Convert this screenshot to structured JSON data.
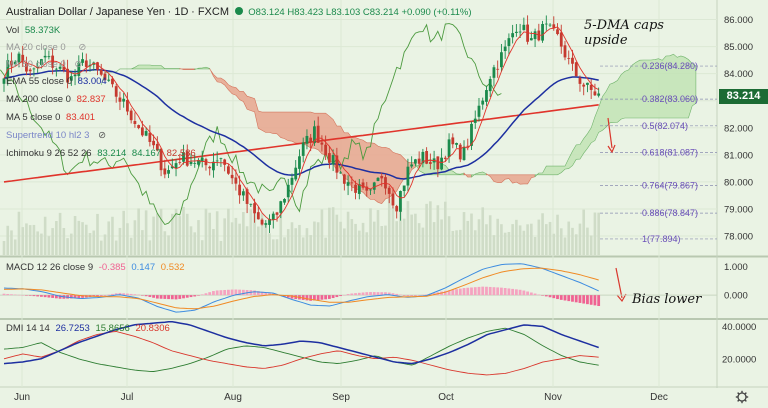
{
  "header": {
    "symbol": "Australian Dollar / Japanese Yen",
    "interval": "1D",
    "exchange": "FXCM",
    "open": "O83.124",
    "high": "H83.423",
    "low": "L83.103",
    "close": "C83.214",
    "change": "+0.090 (+0.11%)"
  },
  "indicators": {
    "volume": {
      "label": "Vol",
      "value": "58.373K"
    },
    "ma20": {
      "label": "MA 20 close 0",
      "value": ""
    },
    "ma50": {
      "label": "MA 50 close 0",
      "value": ""
    },
    "ema55": {
      "label": "EMA 55 close 0",
      "value": "83.004"
    },
    "ma200": {
      "label": "MA 200 close 0",
      "value": "82.837"
    },
    "ma5": {
      "label": "MA 5 close 0",
      "value": "83.401"
    },
    "supertrend": {
      "label": "Supertrend 10 hl2 3",
      "value": ""
    },
    "ichimoku": {
      "label": "Ichimoku 9 26 52 26",
      "values": [
        "83.214",
        "84.167",
        "82.586"
      ]
    },
    "macd": {
      "label": "MACD 12 26 close 9",
      "values": [
        "-0.385",
        "0.147",
        "0.532"
      ]
    },
    "dmi": {
      "label": "DMI 14 14",
      "values": [
        "26.7253",
        "15.8656",
        "20.8306"
      ]
    }
  },
  "annotations": {
    "caps_line1": "5-DMA caps",
    "caps_line2": "upside",
    "bias": "Bias lower"
  },
  "last_price": "83.214",
  "colors": {
    "up": "#1b8a4c",
    "down": "#c53a2f",
    "ema55": "#1d2fa0",
    "ma200": "#e0342b",
    "ma5": "#e0342b",
    "cloud_bull": "#c2e3b5",
    "cloud_bear": "#e8a58e",
    "chikou": "#4c9a3f",
    "macd": "#3d8ce0",
    "signal": "#f08a24",
    "hist": "#f06292",
    "adx": "#1d2fa0",
    "plus_di": "#2e7d32",
    "minus_di": "#d9362c",
    "fib": "#6a4fb8"
  },
  "chart_data": {
    "type": "candlestick",
    "title": "Australian Dollar / Japanese Yen, 1D, FXCM",
    "x_labels": [
      "Jun",
      "Jul",
      "Aug",
      "Sep",
      "Oct",
      "Nov",
      "Dec"
    ],
    "price_axis": {
      "min": 77.3,
      "max": 86.5,
      "ticks": [
        "86.000",
        "85.000",
        "84.000",
        "83.000",
        "82.000",
        "81.000",
        "80.000",
        "79.000",
        "78.000"
      ]
    },
    "macd_axis": {
      "min": -0.8,
      "max": 1.3,
      "ticks": [
        "1.000",
        "0.000"
      ]
    },
    "dmi_axis": {
      "min": 5,
      "max": 44,
      "ticks": [
        "40.0000",
        "20.0000"
      ]
    },
    "fibonacci": [
      {
        "label": "0.236(84.280)",
        "value": 84.28
      },
      {
        "label": "0.382(83.060)",
        "value": 83.06
      },
      {
        "label": "0.5(82.074)",
        "value": 82.074
      },
      {
        "label": "0.618(81.087)",
        "value": 81.087
      },
      {
        "label": "0.764(79.867)",
        "value": 79.867
      },
      {
        "label": "0.886(78.847)",
        "value": 78.847
      },
      {
        "label": "1(77.894)",
        "value": 77.894
      }
    ],
    "close_anchors": [
      84.1,
      84.7,
      83.9,
      84.6,
      84.2,
      83.8,
      84.5,
      84.0,
      83.4,
      82.8,
      82.0,
      81.3,
      80.3,
      80.9,
      80.8,
      80.6,
      81.0,
      80.0,
      79.2,
      78.4,
      78.6,
      79.8,
      81.2,
      81.9,
      81.0,
      80.2,
      79.8,
      79.4,
      80.3,
      79.1,
      80.6,
      80.9,
      80.6,
      81.4,
      81.0,
      82.5,
      84.0,
      84.8,
      85.9,
      85.2,
      85.7,
      85.3,
      84.2,
      83.5,
      83.2
    ],
    "macd_anchors": [
      0.25,
      0.22,
      0.12,
      -0.05,
      -0.12,
      -0.08,
      0.02,
      -0.1,
      -0.4,
      -0.6,
      -0.52,
      -0.22,
      0.0,
      0.12,
      0.08,
      -0.15,
      -0.35,
      -0.38,
      -0.2,
      -0.05,
      0.02,
      -0.08,
      -0.02,
      0.25,
      0.6,
      0.92,
      1.08,
      1.1,
      0.95,
      0.7,
      0.45,
      0.15
    ],
    "signal_anchors": [
      0.2,
      0.22,
      0.18,
      0.08,
      -0.02,
      -0.05,
      -0.06,
      -0.12,
      -0.28,
      -0.45,
      -0.48,
      -0.38,
      -0.2,
      -0.05,
      0.02,
      -0.03,
      -0.15,
      -0.25,
      -0.25,
      -0.16,
      -0.08,
      -0.06,
      -0.04,
      0.1,
      0.35,
      0.62,
      0.82,
      0.92,
      0.95,
      0.86,
      0.72,
      0.53
    ],
    "adx_anchors": [
      17,
      18,
      20,
      25,
      30,
      34,
      38,
      41,
      42,
      43,
      41,
      37,
      33,
      30,
      28,
      29,
      31,
      30,
      27,
      24,
      21,
      18,
      17,
      20,
      24,
      29,
      35,
      38,
      41,
      40,
      35,
      31,
      27
    ],
    "plus_di_anchors": [
      26,
      27,
      30,
      24,
      20,
      17,
      15,
      13,
      12,
      14,
      17,
      21,
      26,
      28,
      27,
      24,
      21,
      18,
      17,
      19,
      22,
      18,
      16,
      22,
      28,
      33,
      37,
      39,
      35,
      28,
      22,
      18,
      16
    ],
    "minus_di_anchors": [
      20,
      23,
      21,
      25,
      31,
      35,
      37,
      34,
      30,
      25,
      22,
      19,
      17,
      15,
      14,
      16,
      20,
      23,
      25,
      22,
      20,
      21,
      19,
      16,
      13,
      11,
      10,
      11,
      14,
      18,
      20,
      22,
      21
    ]
  }
}
